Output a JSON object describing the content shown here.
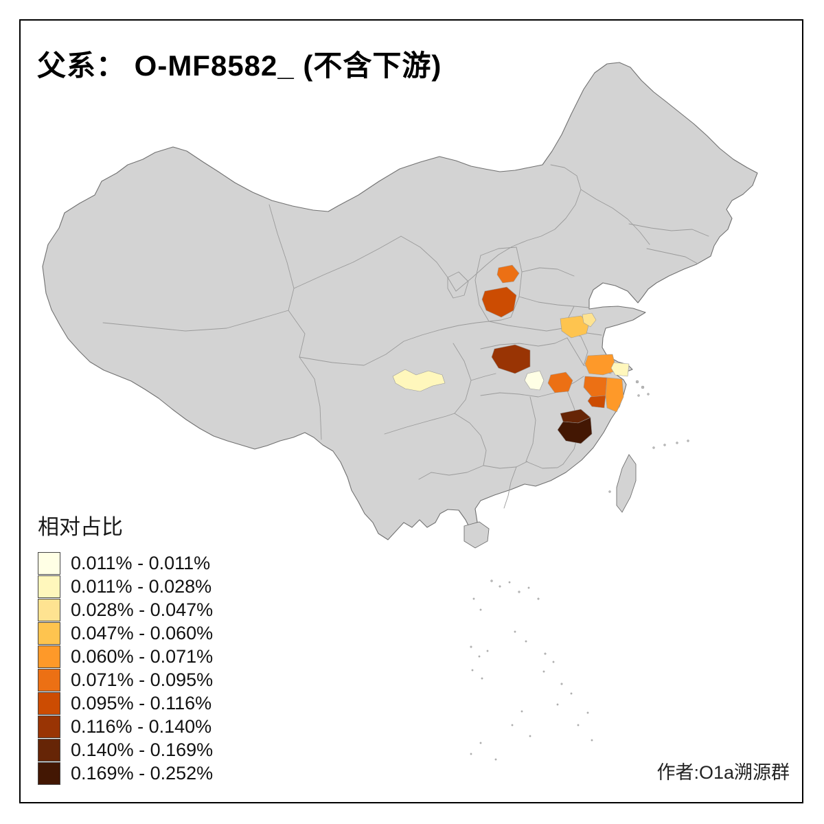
{
  "title": "父系： O-MF8582_ (不含下游)",
  "attribution": "作者:O1a溯源群",
  "legend": {
    "title": "相对占比",
    "classes": [
      {
        "label": "0.011% - 0.011%",
        "color": "#ffffe5"
      },
      {
        "label": "0.011% - 0.028%",
        "color": "#fff7bc"
      },
      {
        "label": "0.028% - 0.047%",
        "color": "#fee391"
      },
      {
        "label": "0.047% - 0.060%",
        "color": "#fec44f"
      },
      {
        "label": "0.060% - 0.071%",
        "color": "#fe9929"
      },
      {
        "label": "0.071% - 0.095%",
        "color": "#ec7014"
      },
      {
        "label": "0.095% - 0.116%",
        "color": "#cc4c02"
      },
      {
        "label": "0.116% - 0.140%",
        "color": "#993404"
      },
      {
        "label": "0.140% - 0.169%",
        "color": "#662506"
      },
      {
        "label": "0.169% - 0.252%",
        "color": "#431703"
      }
    ]
  },
  "map": {
    "land_fill": "#d3d3d3",
    "land_outline": "#707070",
    "province_border": "#9a9a9a",
    "frame_color": "#000000",
    "sea_background": "#ffffff"
  },
  "chart_data": {
    "type": "choropleth",
    "title": "父系： O-MF8582_ (不含下游)",
    "legend_title": "相对占比",
    "legend_position": "bottom-left",
    "regions": [
      {
        "id": "r1",
        "class_index": 5
      },
      {
        "id": "r2",
        "class_index": 6
      },
      {
        "id": "r3",
        "class_index": 3
      },
      {
        "id": "r4",
        "class_index": 2
      },
      {
        "id": "r5",
        "class_index": 7
      },
      {
        "id": "r6",
        "class_index": 1
      },
      {
        "id": "r7",
        "class_index": 0
      },
      {
        "id": "r8",
        "class_index": 5
      },
      {
        "id": "r9",
        "class_index": 4
      },
      {
        "id": "r10",
        "class_index": 1
      },
      {
        "id": "r11",
        "class_index": 5
      },
      {
        "id": "r12",
        "class_index": 6
      },
      {
        "id": "r13",
        "class_index": 4
      },
      {
        "id": "r14",
        "class_index": 8
      },
      {
        "id": "r15",
        "class_index": 9
      }
    ]
  }
}
